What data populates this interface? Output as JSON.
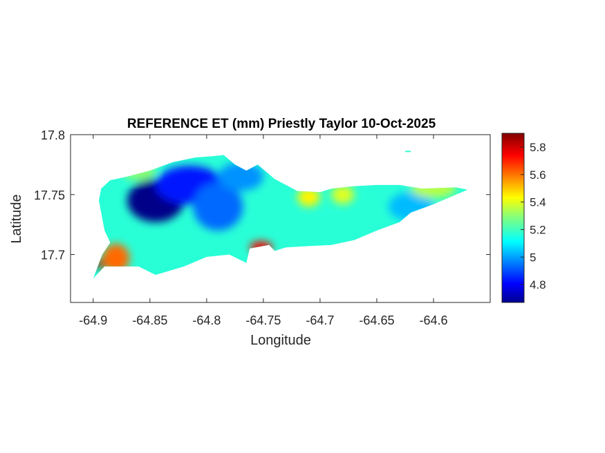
{
  "chart_data": {
    "type": "heatmap",
    "title": "REFERENCE ET (mm) Priestly Taylor 10-Oct-2025",
    "xlabel": "Longitude",
    "ylabel": "Latitude",
    "xlim": [
      -64.92,
      -64.55
    ],
    "ylim": [
      17.66,
      17.8
    ],
    "xticks": [
      -64.9,
      -64.85,
      -64.8,
      -64.75,
      -64.7,
      -64.65,
      -64.6
    ],
    "xtick_labels": [
      "-64.9",
      "-64.85",
      "-64.8",
      "-64.75",
      "-64.7",
      "-64.65",
      "-64.6"
    ],
    "yticks": [
      17.7,
      17.75,
      17.8
    ],
    "ytick_labels": [
      "17.7",
      "17.75",
      "17.8"
    ],
    "colormap": "jet",
    "colorbar": {
      "range": [
        4.67,
        5.9
      ],
      "ticks": [
        4.8,
        5,
        5.2,
        5.4,
        5.6,
        5.8
      ],
      "tick_labels": [
        "4.8",
        "5",
        "5.2",
        "5.4",
        "5.6",
        "5.8"
      ],
      "location": "right"
    },
    "grid": false,
    "field": {
      "description_units": "mm",
      "background": 5.18,
      "features": [
        {
          "lon": -64.845,
          "lat": 17.745,
          "value": 4.68,
          "r_lon": 0.025,
          "r_lat": 0.018
        },
        {
          "lon": -64.815,
          "lat": 17.758,
          "value": 4.85,
          "r_lon": 0.03,
          "r_lat": 0.016
        },
        {
          "lon": -64.79,
          "lat": 17.74,
          "value": 4.95,
          "r_lon": 0.022,
          "r_lat": 0.02
        },
        {
          "lon": -64.77,
          "lat": 17.765,
          "value": 5.0,
          "r_lon": 0.02,
          "r_lat": 0.012
        },
        {
          "lon": -64.88,
          "lat": 17.697,
          "value": 5.62,
          "r_lon": 0.012,
          "r_lat": 0.012
        },
        {
          "lon": -64.895,
          "lat": 17.692,
          "value": 5.88,
          "r_lon": 0.004,
          "r_lat": 0.004
        },
        {
          "lon": -64.752,
          "lat": 17.706,
          "value": 5.75,
          "r_lon": 0.01,
          "r_lat": 0.005
        },
        {
          "lon": -64.71,
          "lat": 17.748,
          "value": 5.45,
          "r_lon": 0.01,
          "r_lat": 0.008
        },
        {
          "lon": -64.68,
          "lat": 17.75,
          "value": 5.4,
          "r_lon": 0.01,
          "r_lat": 0.008
        },
        {
          "lon": -64.62,
          "lat": 17.74,
          "value": 5.05,
          "r_lon": 0.02,
          "r_lat": 0.012
        },
        {
          "lon": -64.6,
          "lat": 17.755,
          "value": 5.35,
          "r_lon": 0.02,
          "r_lat": 0.008
        },
        {
          "lon": -64.86,
          "lat": 17.77,
          "value": 5.3,
          "r_lon": 0.015,
          "r_lat": 0.008
        }
      ],
      "coastline": [
        [
          -64.9,
          17.68
        ],
        [
          -64.89,
          17.69
        ],
        [
          -64.86,
          17.69
        ],
        [
          -64.845,
          17.683
        ],
        [
          -64.82,
          17.69
        ],
        [
          -64.8,
          17.698
        ],
        [
          -64.78,
          17.7
        ],
        [
          -64.765,
          17.693
        ],
        [
          -64.762,
          17.705
        ],
        [
          -64.745,
          17.708
        ],
        [
          -64.74,
          17.703
        ],
        [
          -64.73,
          17.706
        ],
        [
          -64.71,
          17.707
        ],
        [
          -64.69,
          17.708
        ],
        [
          -64.67,
          17.712
        ],
        [
          -64.65,
          17.72
        ],
        [
          -64.63,
          17.727
        ],
        [
          -64.62,
          17.735
        ],
        [
          -64.6,
          17.742
        ],
        [
          -64.57,
          17.754
        ],
        [
          -64.58,
          17.756
        ],
        [
          -64.61,
          17.755
        ],
        [
          -64.63,
          17.758
        ],
        [
          -64.65,
          17.758
        ],
        [
          -64.67,
          17.757
        ],
        [
          -64.69,
          17.755
        ],
        [
          -64.7,
          17.752
        ],
        [
          -64.72,
          17.753
        ],
        [
          -64.74,
          17.763
        ],
        [
          -64.755,
          17.775
        ],
        [
          -64.765,
          17.77
        ],
        [
          -64.775,
          17.775
        ],
        [
          -64.785,
          17.783
        ],
        [
          -64.795,
          17.782
        ],
        [
          -64.81,
          17.781
        ],
        [
          -64.83,
          17.777
        ],
        [
          -64.85,
          17.77
        ],
        [
          -64.87,
          17.765
        ],
        [
          -64.885,
          17.762
        ],
        [
          -64.893,
          17.755
        ],
        [
          -64.895,
          17.745
        ],
        [
          -64.893,
          17.735
        ],
        [
          -64.89,
          17.72
        ],
        [
          -64.885,
          17.71
        ],
        [
          -64.892,
          17.7
        ]
      ],
      "islet": [
        [
          -64.625,
          17.786
        ],
        [
          -64.62,
          17.786
        ]
      ]
    }
  }
}
